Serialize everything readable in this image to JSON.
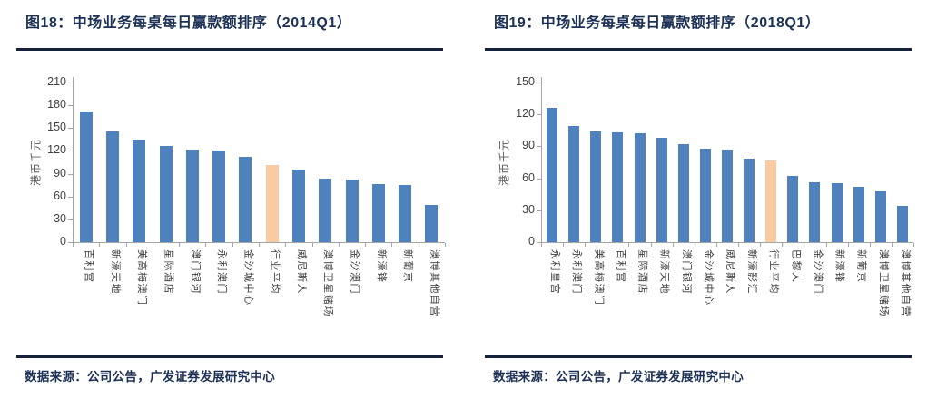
{
  "colors": {
    "bar_blue": "#4F81BD",
    "bar_highlight": "#FACAA0",
    "title_navy": "#1B3054",
    "rule_dark": "#152238",
    "axis_line": "#A6A6A6",
    "tick_text": "#404040",
    "category_text": "#3A3A3A"
  },
  "chart_data": [
    {
      "type": "bar",
      "title": "图18：中场业务每桌每日赢款额排序（2014Q1）",
      "source_note": "数据来源：公司公告，广发证券发展研究中心",
      "ylabel": "港币千元",
      "xlabel": "",
      "ylim": [
        0,
        210
      ],
      "yticks": [
        0,
        30,
        60,
        90,
        120,
        150,
        180,
        210
      ],
      "grid": false,
      "legend": false,
      "categories": [
        "百利宫",
        "新濠天地",
        "美高梅澳门",
        "星际酒店",
        "澳门银河",
        "永利澳门",
        "金沙城中心",
        "行业平均",
        "威尼斯人",
        "澳博卫星赌场",
        "金沙澳门",
        "新濠锋",
        "新葡京",
        "澳博其他自营"
      ],
      "values": [
        172,
        145,
        135,
        127,
        122,
        121,
        112,
        101,
        96,
        83,
        82,
        76,
        75,
        49
      ],
      "highlight_index": 7,
      "highlight_label": "行业平均"
    },
    {
      "type": "bar",
      "title": "图19：中场业务每桌每日赢款额排序（2018Q1）",
      "source_note": "数据来源：公司公告，广发证券发展研究中心",
      "ylabel": "港币千元",
      "xlabel": "",
      "ylim": [
        0,
        150
      ],
      "yticks": [
        0,
        30,
        60,
        90,
        120,
        150
      ],
      "grid": false,
      "legend": false,
      "categories": [
        "永利皇宫",
        "永利澳门",
        "美高梅澳门",
        "百利宫",
        "星际酒店",
        "新濠天地",
        "澳门银河",
        "金沙城中心",
        "威尼斯人",
        "新濠影汇",
        "行业平均",
        "巴黎人",
        "金沙澳门",
        "新濠锋",
        "新葡京",
        "澳博卫星赌场",
        "澳博其他自营"
      ],
      "values": [
        126,
        109,
        104,
        103,
        102,
        98,
        92,
        88,
        87,
        78,
        77,
        62,
        56,
        55,
        52,
        48,
        34
      ],
      "highlight_index": 10,
      "highlight_label": "行业平均"
    }
  ]
}
